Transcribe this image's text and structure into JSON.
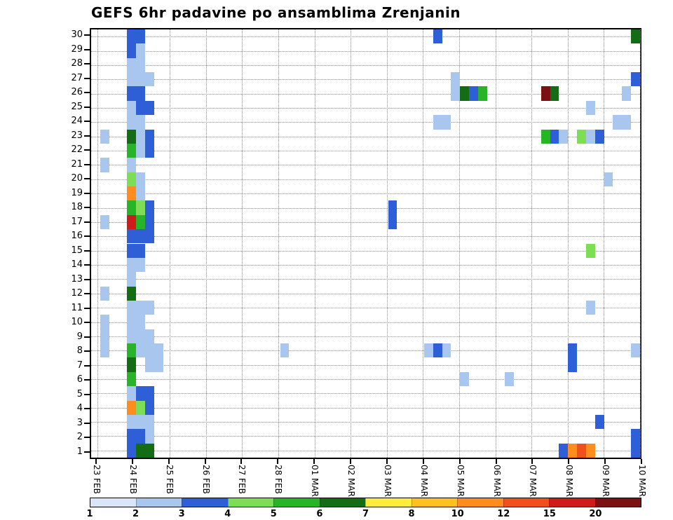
{
  "title": "GEFS 6hr padavine po ansamblima Zrenjanin",
  "chart_data": {
    "type": "heatmap",
    "title": "GEFS 6hr padavine po ansamblima Zrenjanin",
    "x_axis": {
      "tick_labels": [
        "23 FEB",
        "24 FEB",
        "25 FEB",
        "26 FEB",
        "27 FEB",
        "28 FEB",
        "01 MAR",
        "02 MAR",
        "03 MAR",
        "04 MAR",
        "05 MAR",
        "06 MAR",
        "07 MAR",
        "08 MAR",
        "09 MAR",
        "10 MAR"
      ],
      "n_slots": 61,
      "slots_per_day": 4,
      "first_tick_slot": 0.7,
      "tick_step_slots": 4.02
    },
    "y_axis": {
      "tick_labels": [
        "30",
        "29",
        "28",
        "27",
        "26",
        "25",
        "24",
        "23",
        "22",
        "21",
        "20",
        "19",
        "18",
        "17",
        "16",
        "15",
        "14",
        "13",
        "12",
        "11",
        "10",
        "9",
        "8",
        "7",
        "6",
        "5",
        "4",
        "3",
        "2",
        "1"
      ],
      "n_rows": 30
    },
    "legend": {
      "labels": [
        "1",
        "2",
        "3",
        "4",
        "5",
        "6",
        "7",
        "8",
        "10",
        "12",
        "15",
        "20"
      ],
      "colors": [
        "#d8e6f8",
        "#a9c6ee",
        "#2e5fd6",
        "#7ddd54",
        "#28b428",
        "#146c14",
        "#ffeb3b",
        "#ffc022",
        "#ff8c1c",
        "#f1501c",
        "#d01b1b",
        "#7c1113"
      ],
      "position": "bottom"
    },
    "grid": "dotted",
    "cells": [
      [
        30,
        4,
        3
      ],
      [
        30,
        5,
        3
      ],
      [
        30,
        38,
        3
      ],
      [
        30,
        60,
        6
      ],
      [
        29,
        4,
        3
      ],
      [
        29,
        5,
        2
      ],
      [
        28,
        4,
        2
      ],
      [
        28,
        5,
        2
      ],
      [
        27,
        4,
        2
      ],
      [
        27,
        5,
        2
      ],
      [
        27,
        6,
        2
      ],
      [
        27,
        40,
        2
      ],
      [
        27,
        60,
        3
      ],
      [
        26,
        4,
        3
      ],
      [
        26,
        5,
        3
      ],
      [
        26,
        40,
        2
      ],
      [
        26,
        41,
        6
      ],
      [
        26,
        42,
        3
      ],
      [
        26,
        43,
        5
      ],
      [
        26,
        50,
        12
      ],
      [
        26,
        51,
        6
      ],
      [
        26,
        59,
        2
      ],
      [
        25,
        4,
        2
      ],
      [
        25,
        5,
        3
      ],
      [
        25,
        6,
        3
      ],
      [
        25,
        55,
        2
      ],
      [
        24,
        4,
        2
      ],
      [
        24,
        5,
        2
      ],
      [
        24,
        38,
        2
      ],
      [
        24,
        39,
        2
      ],
      [
        24,
        58,
        2
      ],
      [
        24,
        59,
        2
      ],
      [
        23,
        1,
        2
      ],
      [
        23,
        4,
        6
      ],
      [
        23,
        5,
        2
      ],
      [
        23,
        6,
        3
      ],
      [
        23,
        50,
        5
      ],
      [
        23,
        51,
        3
      ],
      [
        23,
        52,
        2
      ],
      [
        23,
        54,
        4
      ],
      [
        23,
        55,
        2
      ],
      [
        23,
        56,
        3
      ],
      [
        22,
        4,
        5
      ],
      [
        22,
        5,
        2
      ],
      [
        22,
        6,
        3
      ],
      [
        21,
        1,
        2
      ],
      [
        21,
        4,
        2
      ],
      [
        20,
        4,
        4
      ],
      [
        20,
        5,
        2
      ],
      [
        20,
        57,
        2
      ],
      [
        19,
        4,
        9
      ],
      [
        19,
        5,
        2
      ],
      [
        18,
        4,
        5
      ],
      [
        18,
        5,
        4
      ],
      [
        18,
        6,
        3
      ],
      [
        18,
        33,
        3
      ],
      [
        17,
        1,
        2
      ],
      [
        17,
        4,
        11
      ],
      [
        17,
        5,
        5
      ],
      [
        17,
        6,
        3
      ],
      [
        17,
        33,
        3
      ],
      [
        16,
        4,
        3
      ],
      [
        16,
        5,
        3
      ],
      [
        16,
        6,
        3
      ],
      [
        15,
        4,
        3
      ],
      [
        15,
        5,
        3
      ],
      [
        15,
        55,
        4
      ],
      [
        14,
        4,
        2
      ],
      [
        14,
        5,
        2
      ],
      [
        13,
        4,
        2
      ],
      [
        12,
        1,
        2
      ],
      [
        12,
        4,
        6
      ],
      [
        11,
        4,
        2
      ],
      [
        11,
        5,
        2
      ],
      [
        11,
        6,
        2
      ],
      [
        11,
        55,
        2
      ],
      [
        10,
        1,
        2
      ],
      [
        10,
        4,
        2
      ],
      [
        10,
        5,
        2
      ],
      [
        9,
        1,
        2
      ],
      [
        9,
        4,
        2
      ],
      [
        9,
        5,
        2
      ],
      [
        9,
        6,
        2
      ],
      [
        8,
        1,
        2
      ],
      [
        8,
        4,
        5
      ],
      [
        8,
        5,
        2
      ],
      [
        8,
        6,
        2
      ],
      [
        8,
        7,
        2
      ],
      [
        8,
        21,
        2
      ],
      [
        8,
        37,
        2
      ],
      [
        8,
        38,
        3
      ],
      [
        8,
        39,
        2
      ],
      [
        8,
        53,
        3
      ],
      [
        8,
        60,
        2
      ],
      [
        7,
        4,
        6
      ],
      [
        7,
        6,
        2
      ],
      [
        7,
        7,
        2
      ],
      [
        7,
        53,
        3
      ],
      [
        6,
        4,
        5
      ],
      [
        6,
        41,
        2
      ],
      [
        6,
        46,
        2
      ],
      [
        5,
        4,
        2
      ],
      [
        5,
        5,
        3
      ],
      [
        5,
        6,
        3
      ],
      [
        4,
        4,
        9
      ],
      [
        4,
        5,
        4
      ],
      [
        4,
        6,
        3
      ],
      [
        3,
        4,
        2
      ],
      [
        3,
        5,
        2
      ],
      [
        3,
        6,
        2
      ],
      [
        3,
        56,
        3
      ],
      [
        2,
        4,
        3
      ],
      [
        2,
        5,
        3
      ],
      [
        2,
        6,
        2
      ],
      [
        2,
        60,
        3
      ],
      [
        1,
        4,
        3
      ],
      [
        1,
        5,
        6
      ],
      [
        1,
        6,
        6
      ],
      [
        1,
        52,
        3
      ],
      [
        1,
        53,
        9
      ],
      [
        1,
        54,
        10
      ],
      [
        1,
        55,
        9
      ],
      [
        1,
        60,
        3
      ]
    ]
  }
}
